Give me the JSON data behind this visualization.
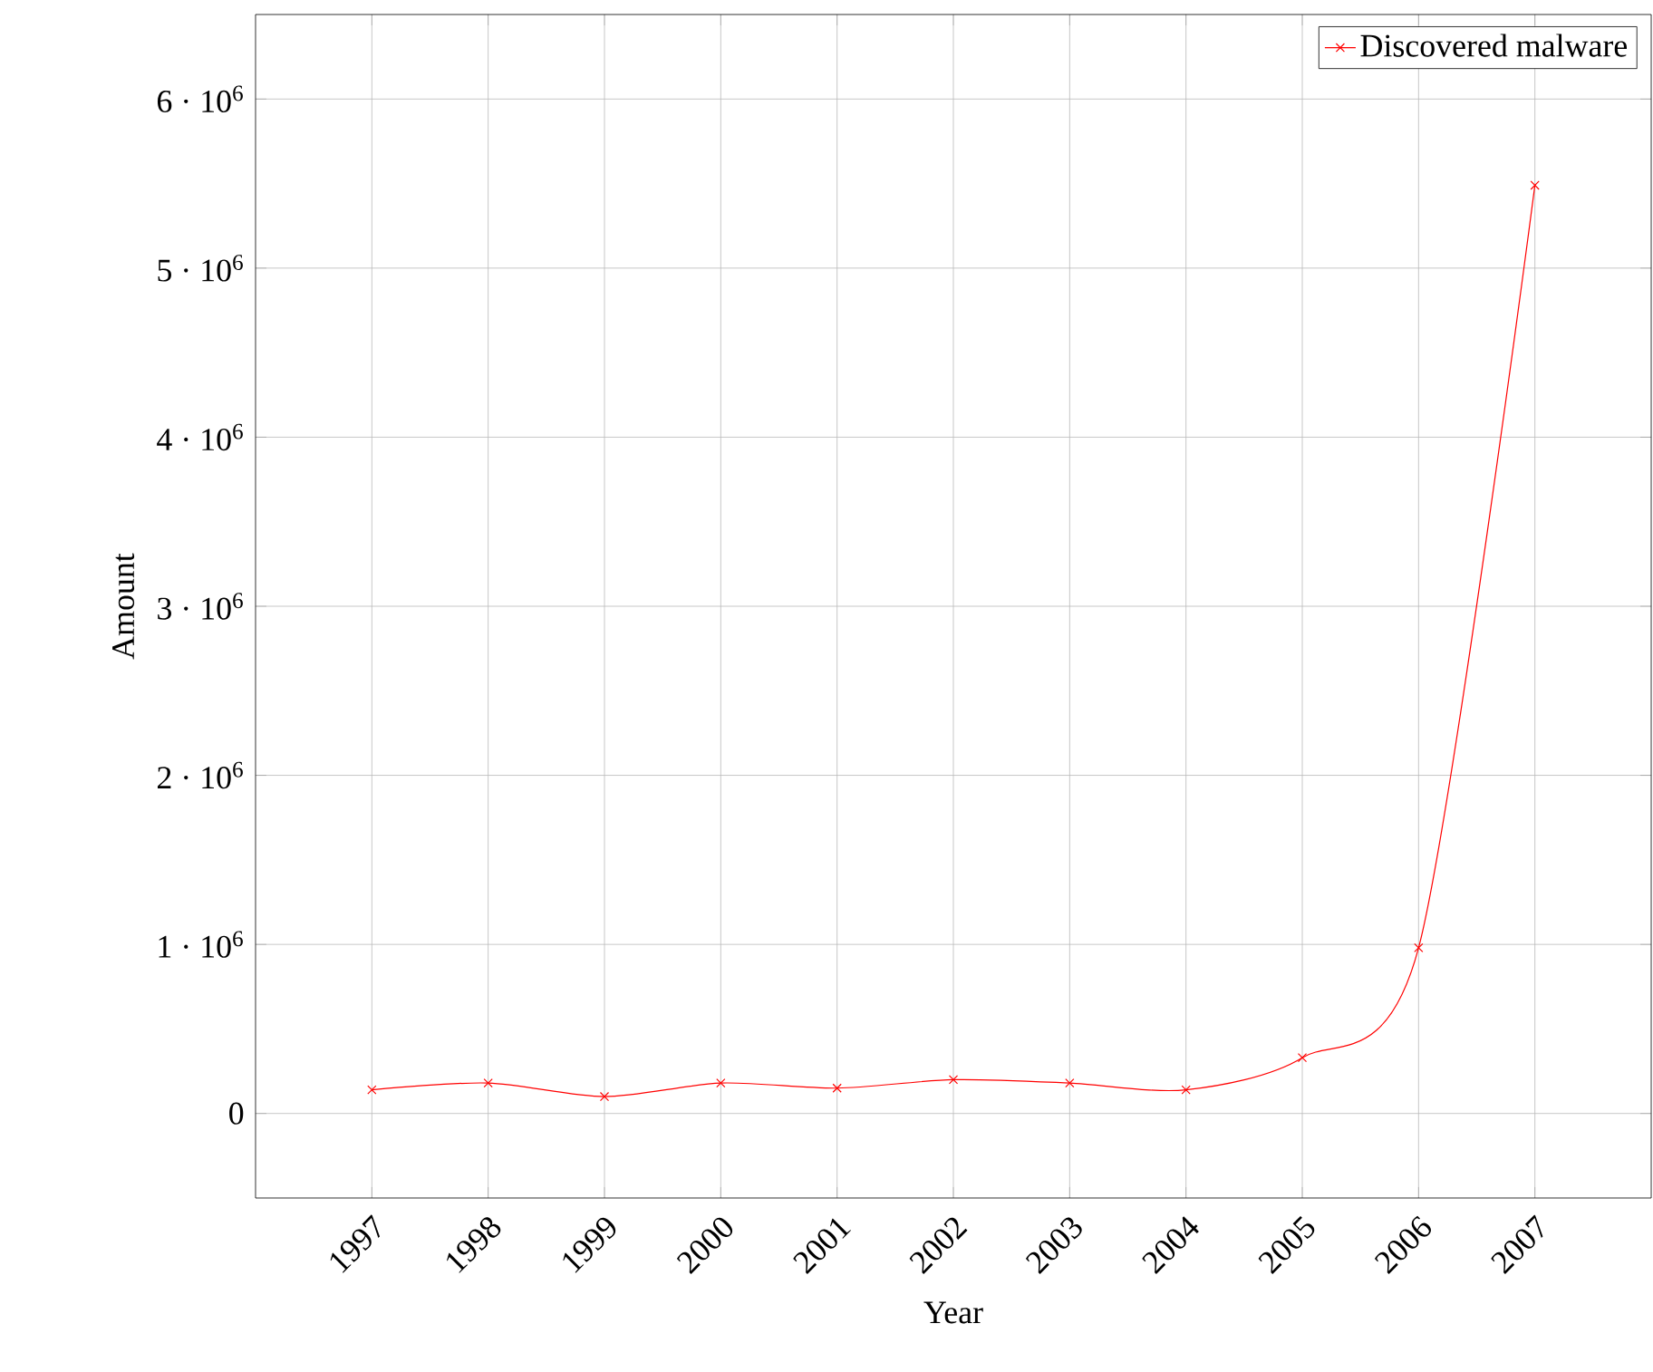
{
  "chart_data": {
    "type": "line",
    "xlabel": "Year",
    "ylabel": "Amount",
    "x": [
      1997,
      1998,
      1999,
      2000,
      2001,
      2002,
      2003,
      2004,
      2005,
      2006,
      2007
    ],
    "series": [
      {
        "name": "Discovered malware",
        "color": "#ff0000",
        "values": [
          140000,
          180000,
          100000,
          180000,
          150000,
          200000,
          180000,
          140000,
          330000,
          980000,
          5490000
        ]
      }
    ],
    "xlim": [
      1996,
      2008
    ],
    "ylim": [
      -500000,
      6500000
    ],
    "xticks": [
      1997,
      1998,
      1999,
      2000,
      2001,
      2002,
      2003,
      2004,
      2005,
      2006,
      2007
    ],
    "yticks": [
      0,
      {
        "value": 1000000,
        "label": "1 · 10$^{6}$"
      },
      {
        "value": 2000000,
        "label": "2 · 10$^{6}$"
      },
      {
        "value": 3000000,
        "label": "3 · 10$^{6}$"
      },
      {
        "value": 4000000,
        "label": "4 · 10$^{6}$"
      },
      {
        "value": 5000000,
        "label": "5 · 10$^{6}$"
      },
      {
        "value": 6000000,
        "label": "6 · 10$^{6}$"
      }
    ],
    "grid": true,
    "legend": "top right",
    "marker": "cross",
    "line_style": "solid"
  }
}
